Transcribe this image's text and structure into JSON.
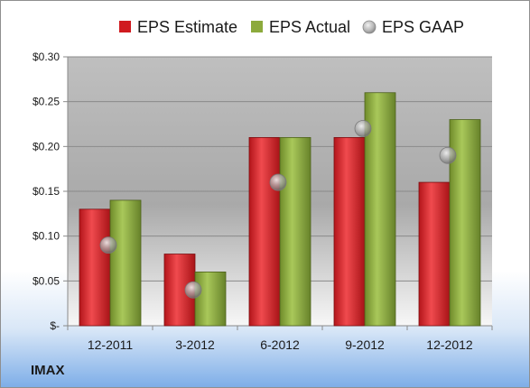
{
  "chart_data": {
    "type": "bar",
    "ticker": "IMAX",
    "categories": [
      "12-2011",
      "3-2012",
      "6-2012",
      "9-2012",
      "12-2012"
    ],
    "series": [
      {
        "name": "EPS Estimate",
        "kind": "bar",
        "color": "#d01a1f",
        "values": [
          0.13,
          0.08,
          0.21,
          0.21,
          0.16
        ]
      },
      {
        "name": "EPS Actual",
        "kind": "bar",
        "color": "#8caa3c",
        "values": [
          0.14,
          0.06,
          0.21,
          0.26,
          0.23
        ]
      },
      {
        "name": "EPS GAAP",
        "kind": "marker",
        "color": "#b8b8b8",
        "values": [
          0.09,
          0.04,
          0.16,
          0.22,
          0.19
        ]
      }
    ],
    "yticks": [
      {
        "value": 0,
        "label": "$-"
      },
      {
        "value": 0.05,
        "label": "$0.05"
      },
      {
        "value": 0.1,
        "label": "$0.10"
      },
      {
        "value": 0.15,
        "label": "$0.15"
      },
      {
        "value": 0.2,
        "label": "$0.20"
      },
      {
        "value": 0.25,
        "label": "$0.25"
      },
      {
        "value": 0.3,
        "label": "$0.30"
      }
    ],
    "ylim": [
      0,
      0.3
    ],
    "grid": true,
    "legend_position": "top"
  }
}
